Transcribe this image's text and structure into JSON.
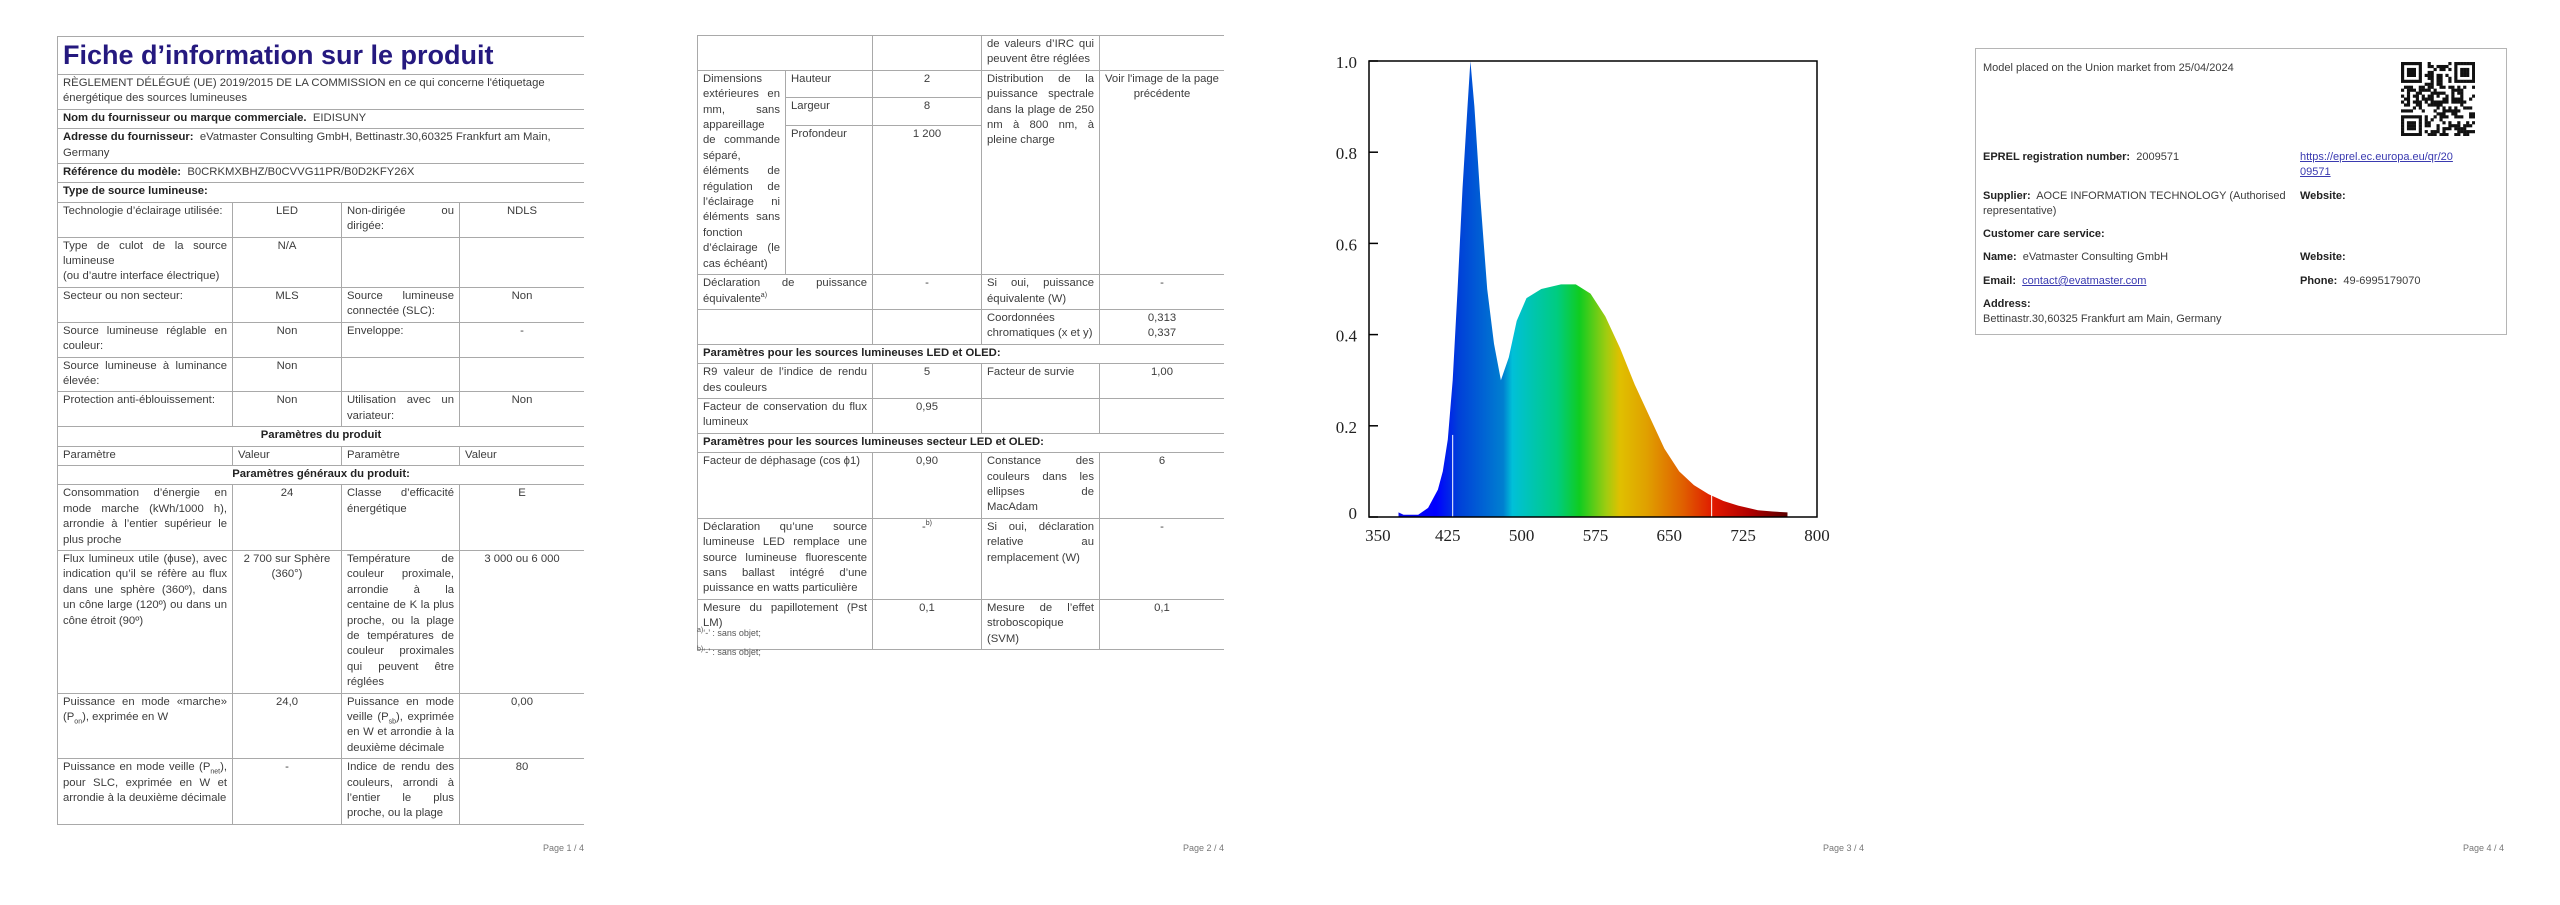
{
  "page1": {
    "page_label": "Page 1 / 4",
    "rows": [
      {
        "kind": "title",
        "text": "Fiche d’information sur le produit"
      },
      {
        "kind": "full",
        "text": "RÈGLEMENT DÉLÉGUÉ (UE) 2019/2015 DE LA COMMISSION en ce qui concerne l'étiquetage énergétique des sources lumineuses"
      },
      {
        "kind": "lv",
        "label": "Nom du fournisseur ou marque commerciale.",
        "value": "EIDISUNY"
      },
      {
        "kind": "lv",
        "label": "Adresse du fournisseur:",
        "value": "eVatmaster Consulting GmbH, Bettinastr.30,60325 Frankfurt am Main, Germany"
      },
      {
        "kind": "lv",
        "label": "Référence du modèle:",
        "value": "B0CRKMXBHZ/B0CVVG11PR/B0D2KFY26X"
      },
      {
        "kind": "lv",
        "label": "Type de source lumineuse:",
        "value": ""
      },
      {
        "kind": "cells",
        "cells": [
          "Technologie d’éclairage utilisée:",
          "LED",
          "Non-dirigée ou dirigée:",
          "NDLS"
        ]
      },
      {
        "kind": "cells",
        "cells": [
          "Type de culot de la source lumineuse\n(ou d’autre interface électrique)",
          "N/A",
          "",
          ""
        ]
      },
      {
        "kind": "cells",
        "cells": [
          "Secteur ou non secteur:",
          "MLS",
          "Source lumineuse connectée (SLC):",
          "Non"
        ]
      },
      {
        "kind": "cells",
        "cells": [
          "Source lumineuse réglable en couleur:",
          "Non",
          "Enveloppe:",
          "-"
        ]
      },
      {
        "kind": "cells",
        "cells": [
          "Source lumineuse à luminance élevée:",
          "Non",
          "",
          ""
        ]
      },
      {
        "kind": "cells",
        "cells": [
          "Protection anti-éblouissement:",
          "Non",
          "Utilisation avec un variateur:",
          "Non"
        ]
      },
      {
        "kind": "section",
        "text": "Paramètres du produit"
      },
      {
        "kind": "header",
        "cells": [
          "Paramètre",
          "Valeur",
          "Paramètre",
          "Valeur"
        ]
      },
      {
        "kind": "section",
        "text": "Paramètres généraux du produit:"
      },
      {
        "kind": "cells",
        "cells": [
          "Consommation d’énergie en mode marche (kWh/1000 h), arrondie à l’entier supérieur le plus proche",
          "24",
          "Classe d’efficacité énergétique",
          "E"
        ]
      },
      {
        "kind": "cells",
        "cells": [
          "Flux lumineux utile (ϕuse), avec indication qu’il se réfère au flux dans une sphère (360º), dans un cône large (120º) ou dans un cône étroit (90º)",
          "2 700 sur Sphère (360°)",
          "Température de couleur proximale, arrondie à la centaine de K la plus proche, ou la plage de températures de couleur proximales qui peuvent être réglées",
          "3 000 ou 6 000"
        ]
      },
      {
        "kind": "cells",
        "cells": [
          [
            {
              "t": "Puissance en mode «marche» (P"
            },
            {
              "sub": "on"
            },
            {
              "t": "), exprimée en W"
            }
          ],
          "24,0",
          [
            {
              "t": "Puissance en mode veille (P"
            },
            {
              "sub": "sb"
            },
            {
              "t": "), exprimée en W et arrondie à la deuxième décimale"
            }
          ],
          "0,00"
        ]
      },
      {
        "kind": "cells",
        "cells": [
          [
            {
              "t": "Puissance en mode veille (P"
            },
            {
              "sub": "net"
            },
            {
              "t": "), pour SLC, exprimée en W et arrondie à la deuxième décimale"
            }
          ],
          "-",
          "Indice de rendu des couleurs, arrondi à l’entier le plus proche, ou la plage",
          "80"
        ]
      }
    ]
  },
  "page2": {
    "page_label": "Page 2 / 4",
    "rows": [
      {
        "kind": "cells",
        "cells": [
          "",
          "",
          "de valeurs d’IRC qui peuvent être réglées",
          ""
        ]
      },
      {
        "kind": "dims",
        "label": "Dimensions extérieures en mm, sans appareillage de commande séparé, éléments de régulation de l’éclairage ni éléments sans fonction d’éclairage (le cas échéant)",
        "sub": [
          {
            "label": "Hauteur",
            "value": "2"
          },
          {
            "label": "Largeur",
            "value": "8"
          },
          {
            "label": "Profondeur",
            "value": "1 200"
          }
        ],
        "param": "Distribution de la puissance spectrale dans la plage de 250 nm à 800 nm, à pleine charge",
        "value": "Voir l'image de la page précédente"
      },
      {
        "kind": "cells",
        "cells": [
          [
            {
              "t": "Déclaration de puissance équivalente"
            },
            {
              "sup": "a)"
            }
          ],
          "-",
          "Si oui, puissance équivalente (W)",
          "-"
        ]
      },
      {
        "kind": "cells",
        "cells": [
          "",
          "",
          "Coordonnées chromatiques (x et y)",
          "0,313\n0,337"
        ]
      },
      {
        "kind": "sectionleft",
        "text": "Paramètres pour les sources lumineuses LED et OLED:"
      },
      {
        "kind": "cells",
        "cells": [
          "R9 valeur de l’indice de rendu des couleurs",
          "5",
          "Facteur de survie",
          "1,00"
        ]
      },
      {
        "kind": "cells",
        "cells": [
          "Facteur de conservation du flux lumineux",
          "0,95",
          "",
          ""
        ]
      },
      {
        "kind": "sectionleft",
        "text": "Paramètres pour les sources lumineuses secteur LED et OLED:"
      },
      {
        "kind": "cells",
        "cells": [
          "Facteur de déphasage (cos ϕ1)",
          "0,90",
          "Constance des couleurs dans les ellipses de MacAdam",
          "6"
        ]
      },
      {
        "kind": "cells",
        "cells": [
          "Déclaration qu’une source lumineuse LED remplace une source lumineuse fluorescente sans ballast intégré d’une puissance en watts particulière",
          [
            {
              "t": "-"
            },
            {
              "sup": "b)"
            }
          ],
          "Si oui, déclaration relative au remplacement (W)",
          "-"
        ]
      },
      {
        "kind": "cells",
        "cells": [
          "Mesure du papillotement (Pst LM)",
          "0,1",
          "Mesure de l’effet stroboscopique (SVM)",
          "0,1"
        ]
      }
    ],
    "footnotes": [
      {
        "mark": "a)",
        "text": "‘-’ : sans objet;"
      },
      {
        "mark": "b)",
        "text": "‘-’ : sans objet;"
      }
    ]
  },
  "page3": {
    "page_label": "Page 3 / 4",
    "chart_data": {
      "type": "area",
      "title": "",
      "xlabel": "",
      "ylabel": "",
      "xlim": [
        345,
        800
      ],
      "ylim": [
        0,
        1.0
      ],
      "x_ticks": [
        350,
        425,
        500,
        575,
        650,
        725,
        800
      ],
      "y_ticks": [
        0,
        0.2,
        0.4,
        0.6,
        0.8,
        1.0
      ],
      "y_tick_labels": [
        "0",
        "0.2",
        "0.4",
        "0.6",
        "0.8",
        "1.0"
      ],
      "grid": false,
      "fill": "visible-spectrum gradient",
      "series": [
        {
          "x": [
            375,
            380,
            395,
            405,
            415,
            420,
            425,
            430,
            435,
            440,
            445,
            448,
            452,
            458,
            465,
            472,
            479,
            487,
            495,
            505,
            520,
            540,
            555,
            570,
            585,
            600,
            615,
            630,
            645,
            660,
            675,
            690,
            705,
            720,
            740,
            755,
            770
          ],
          "y": [
            0.01,
            0.005,
            0.005,
            0.02,
            0.06,
            0.1,
            0.17,
            0.3,
            0.5,
            0.72,
            0.9,
            1.0,
            0.9,
            0.7,
            0.5,
            0.38,
            0.3,
            0.35,
            0.43,
            0.48,
            0.5,
            0.51,
            0.51,
            0.49,
            0.44,
            0.37,
            0.29,
            0.22,
            0.15,
            0.1,
            0.07,
            0.05,
            0.035,
            0.025,
            0.015,
            0.012,
            0.01
          ]
        }
      ]
    }
  },
  "page4": {
    "page_label": "Page 4 / 4",
    "market_text": "Model placed on the Union market from 25/04/2024",
    "eprel_label": "EPREL registration number:",
    "eprel_value": "2009571",
    "eprel_link_1": "https://eprel.ec.europa.eu/qr/20",
    "eprel_link_2": "09571",
    "supplier_label": "Supplier:",
    "supplier_value_1": "AOCE INFORMATION TECHNOLOGY (Authorised",
    "supplier_value_2": "representative)",
    "website_label": "Website:",
    "customer_care_label": "Customer care service:",
    "name_label": "Name:",
    "name_value": "eVatmaster Consulting GmbH",
    "website2_label": "Website:",
    "email_label": "Email:",
    "email_value": "contact@evatmaster.com",
    "phone_label": "Phone:",
    "phone_value": "49-6995179070",
    "address_label": "Address:",
    "address_value": "Bettinastr.30,60325 Frankfurt am Main, Germany",
    "qr_icon": "qr-code"
  }
}
